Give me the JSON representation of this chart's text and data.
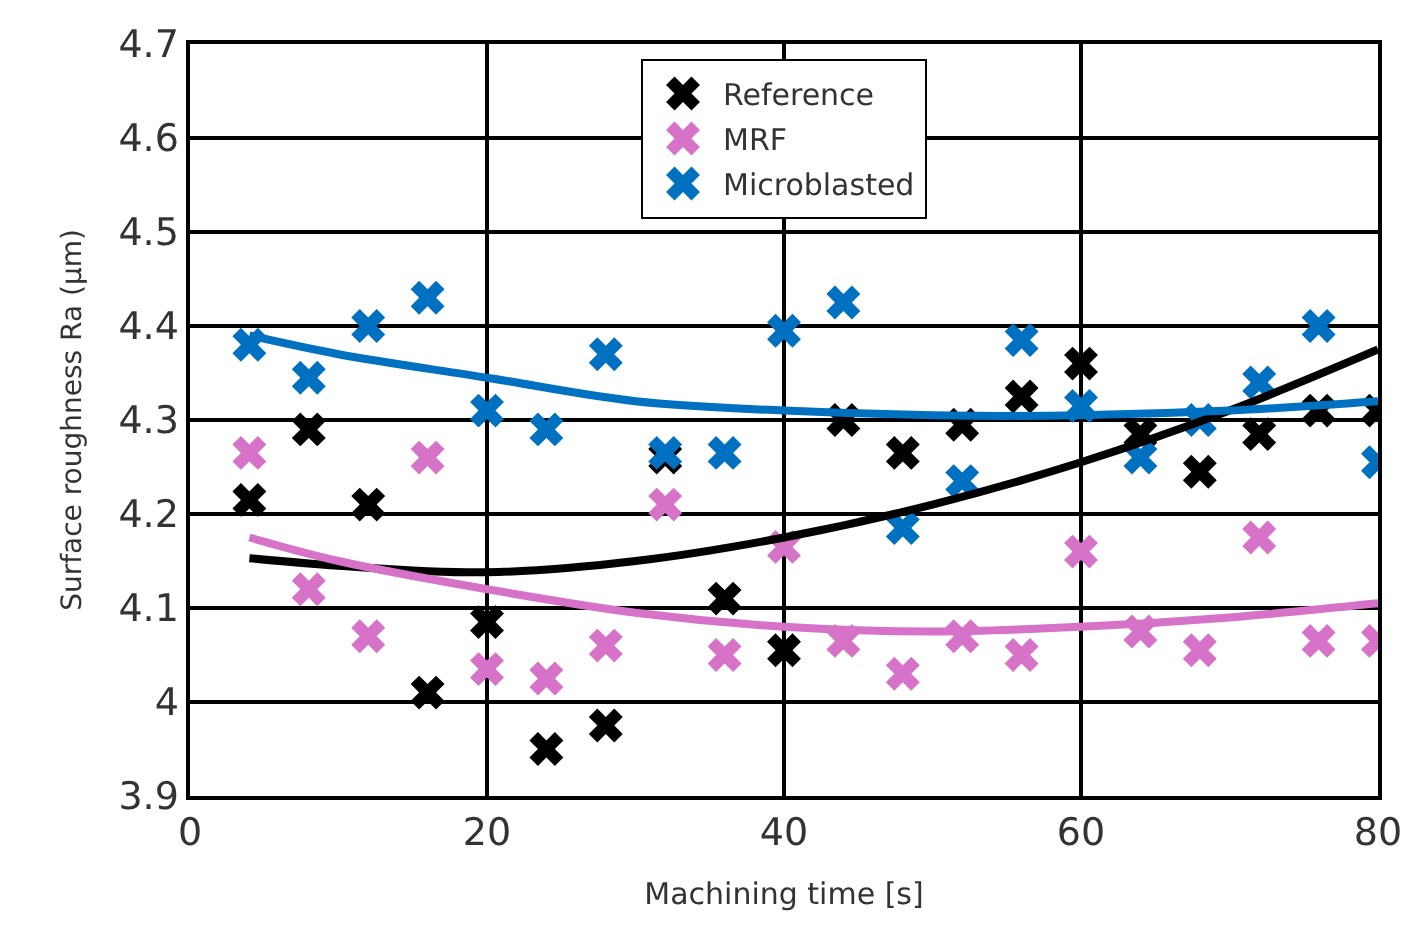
{
  "chart_data": {
    "type": "scatter",
    "xlabel": "Machining time [s]",
    "ylabel": "Surface roughness Ra (µm)",
    "xlim": [
      0,
      80
    ],
    "xticks": [
      0,
      20,
      40,
      60,
      80
    ],
    "ylim": [
      3.9,
      4.7
    ],
    "yticks": [
      3.9,
      4,
      4.1,
      4.2,
      4.3,
      4.4,
      4.5,
      4.6,
      4.7
    ],
    "grid": true,
    "legend": "top",
    "x": [
      4,
      8,
      12,
      16,
      20,
      24,
      28,
      32,
      36,
      40,
      44,
      48,
      52,
      56,
      60,
      64,
      68,
      72,
      76,
      80
    ],
    "series": [
      {
        "name": "Reference",
        "marker": "cross",
        "color": "#000000",
        "values": [
          4.215,
          4.29,
          4.21,
          4.01,
          4.085,
          3.95,
          3.975,
          4.26,
          4.11,
          4.055,
          4.3,
          4.265,
          4.295,
          4.325,
          4.36,
          4.285,
          4.245,
          4.285,
          4.31,
          4.31
        ]
      },
      {
        "name": "MRF",
        "marker": "cross",
        "color": "#d672c8",
        "values": [
          4.265,
          4.12,
          4.07,
          4.26,
          4.035,
          4.025,
          4.06,
          4.21,
          4.05,
          4.165,
          4.065,
          4.03,
          4.07,
          4.05,
          4.16,
          4.075,
          4.055,
          4.175,
          4.065,
          4.065
        ]
      },
      {
        "name": "Microblasted",
        "marker": "cross",
        "color": "#0070c0",
        "values": [
          4.38,
          4.345,
          4.4,
          4.43,
          4.31,
          4.29,
          4.37,
          4.265,
          4.265,
          4.395,
          4.425,
          4.185,
          4.235,
          4.385,
          4.315,
          4.26,
          4.3,
          4.34,
          4.4,
          4.255
        ]
      },
      {
        "type": "line",
        "marker": "none",
        "color": "#000000",
        "x": [
          4,
          10,
          20,
          30,
          40,
          50,
          60,
          70,
          80
        ],
        "values": [
          4.153,
          4.145,
          4.138,
          4.15,
          4.175,
          4.21,
          4.255,
          4.31,
          4.375
        ]
      },
      {
        "type": "line",
        "marker": "none",
        "color": "#d672c8",
        "x": [
          4,
          10,
          20,
          30,
          40,
          50,
          60,
          70,
          80
        ],
        "values": [
          4.175,
          4.15,
          4.12,
          4.095,
          4.08,
          4.075,
          4.08,
          4.09,
          4.105
        ]
      },
      {
        "type": "line",
        "marker": "none",
        "color": "#0070c0",
        "x": [
          4,
          10,
          20,
          30,
          40,
          50,
          60,
          70,
          80
        ],
        "values": [
          4.39,
          4.37,
          4.345,
          4.32,
          4.31,
          4.305,
          4.305,
          4.31,
          4.32
        ]
      }
    ]
  }
}
